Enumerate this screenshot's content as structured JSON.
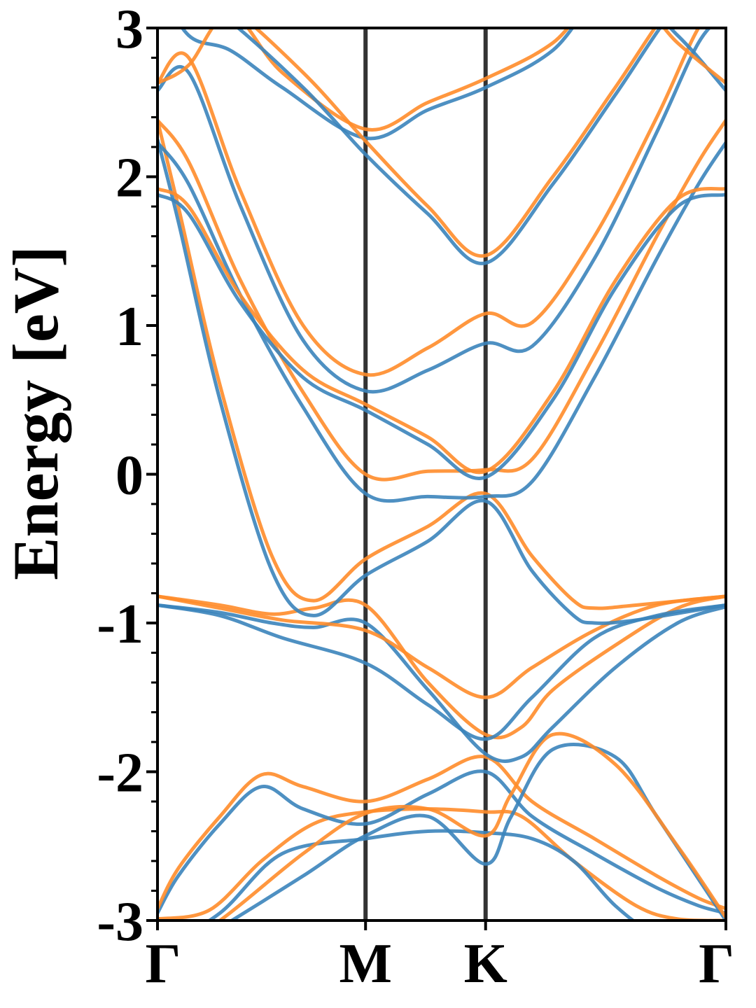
{
  "chart_data": {
    "type": "line",
    "title": "",
    "xlabel": "",
    "ylabel": "Energy [eV]",
    "ylim": [
      -3,
      3
    ],
    "xlim": [
      0,
      2.732
    ],
    "x_ticks": [
      {
        "pos": 0,
        "label": "Γ"
      },
      {
        "pos": 1.0,
        "label": "M"
      },
      {
        "pos": 1.577,
        "label": "K"
      },
      {
        "pos": 2.732,
        "label": "Γ"
      }
    ],
    "y_ticks": [
      {
        "value": 3,
        "label": "3"
      },
      {
        "value": 2,
        "label": "2"
      },
      {
        "value": 1,
        "label": "1"
      },
      {
        "value": 0,
        "label": "0"
      },
      {
        "value": -1,
        "label": "-1"
      },
      {
        "value": -2,
        "label": "-2"
      },
      {
        "value": -3,
        "label": "-3"
      }
    ],
    "vlines": [
      1.0,
      1.577
    ],
    "colors": {
      "spin_a": "#3b84bb",
      "spin_b": "#ff8c2a",
      "vline": "#333333"
    },
    "grid": false,
    "legend": "none",
    "series": [
      {
        "color": "spin_b",
        "x": [
          0,
          0.25,
          0.5,
          0.75,
          1.0,
          1.3,
          1.577,
          1.75,
          2.0,
          2.3,
          2.5,
          2.732
        ],
        "y": [
          -2.99,
          -2.93,
          -2.6,
          -2.35,
          -2.27,
          -2.25,
          -2.27,
          -2.3,
          -2.6,
          -2.9,
          -2.99,
          -3.0
        ]
      },
      {
        "color": "spin_a",
        "x": [
          0,
          0.1,
          0.3,
          0.5,
          0.7,
          1.0,
          1.3,
          1.577,
          1.8,
          2.1,
          2.4,
          2.6,
          2.732
        ],
        "y": [
          -2.95,
          -2.7,
          -2.35,
          -2.1,
          -2.25,
          -2.35,
          -2.15,
          -2.0,
          -2.3,
          -2.55,
          -2.78,
          -2.9,
          -2.95
        ]
      },
      {
        "color": "spin_b",
        "x": [
          0,
          0.1,
          0.3,
          0.5,
          0.7,
          1.0,
          1.3,
          1.577,
          1.8,
          2.1,
          2.4,
          2.6,
          2.732
        ],
        "y": [
          -2.92,
          -2.65,
          -2.3,
          -2.02,
          -2.1,
          -2.2,
          -2.05,
          -1.9,
          -2.2,
          -2.45,
          -2.7,
          -2.85,
          -2.92
        ]
      },
      {
        "color": "spin_a",
        "x": [
          0,
          0.3,
          0.6,
          1.0,
          1.3,
          1.577,
          1.8,
          2.0,
          2.2,
          2.4,
          2.732
        ],
        "y": [
          -3.2,
          -2.95,
          -2.55,
          -2.45,
          -2.4,
          -2.41,
          -2.45,
          -2.6,
          -2.9,
          -3.1,
          -3.3
        ]
      },
      {
        "color": "spin_a",
        "x": [
          0,
          0.3,
          0.7,
          1.0,
          1.3,
          1.577,
          1.7,
          1.9,
          2.2,
          2.4,
          2.732
        ],
        "y": [
          -3.3,
          -3.05,
          -2.7,
          -2.43,
          -2.3,
          -2.62,
          -2.3,
          -1.85,
          -1.9,
          -2.3,
          -3.0
        ]
      },
      {
        "color": "spin_b",
        "x": [
          0,
          0.3,
          0.7,
          1.0,
          1.3,
          1.577,
          1.7,
          1.9,
          2.2,
          2.5,
          2.732
        ],
        "y": [
          -3.25,
          -3.0,
          -2.55,
          -2.28,
          -2.25,
          -2.43,
          -2.15,
          -1.75,
          -1.95,
          -2.5,
          -2.98
        ]
      },
      {
        "color": "spin_b",
        "x": [
          0,
          0.3,
          0.55,
          0.75,
          1.0,
          1.3,
          1.577,
          1.75,
          1.9,
          2.2,
          2.5,
          2.732
        ],
        "y": [
          -0.82,
          -0.88,
          -0.94,
          -0.9,
          -0.88,
          -1.4,
          -1.75,
          -1.7,
          -1.45,
          -1.15,
          -0.9,
          -0.82
        ]
      },
      {
        "color": "spin_a",
        "x": [
          0,
          0.3,
          0.55,
          0.75,
          1.0,
          1.3,
          1.577,
          1.75,
          1.9,
          2.2,
          2.5,
          2.732
        ],
        "y": [
          -0.88,
          -0.93,
          -1.0,
          -1.03,
          -1.0,
          -1.45,
          -1.88,
          -1.9,
          -1.7,
          -1.3,
          -1.0,
          -0.89
        ]
      },
      {
        "color": "spin_b",
        "x": [
          0,
          0.3,
          0.6,
          1.0,
          1.3,
          1.577,
          1.8,
          2.1,
          2.4,
          2.732
        ],
        "y": [
          -0.82,
          -0.9,
          -0.98,
          -1.05,
          -1.3,
          -1.5,
          -1.3,
          -1.05,
          -0.88,
          -0.82
        ]
      },
      {
        "color": "spin_a",
        "x": [
          0,
          0.3,
          0.6,
          1.0,
          1.3,
          1.577,
          1.8,
          2.1,
          2.4,
          2.732
        ],
        "y": [
          -0.88,
          -0.95,
          -1.1,
          -1.27,
          -1.55,
          -1.78,
          -1.5,
          -1.1,
          -0.95,
          -0.88
        ]
      },
      {
        "color": "spin_b",
        "x": [
          0,
          0.1,
          0.3,
          0.55,
          0.75,
          1.0,
          1.3,
          1.577,
          1.8,
          2.0,
          2.1,
          2.3,
          2.732
        ],
        "y": [
          2.38,
          1.8,
          0.6,
          -0.55,
          -0.85,
          -0.57,
          -0.35,
          -0.13,
          -0.55,
          -0.85,
          -0.9,
          -0.88,
          -0.82
        ]
      },
      {
        "color": "spin_a",
        "x": [
          0,
          0.1,
          0.3,
          0.55,
          0.75,
          1.0,
          1.3,
          1.577,
          1.8,
          2.0,
          2.1,
          2.3,
          2.732
        ],
        "y": [
          2.25,
          1.7,
          0.5,
          -0.65,
          -0.95,
          -0.68,
          -0.45,
          -0.18,
          -0.65,
          -0.95,
          -1.0,
          -0.98,
          -0.88
        ]
      },
      {
        "color": "spin_b",
        "x": [
          0,
          0.15,
          0.4,
          0.7,
          1.0,
          1.3,
          1.577,
          1.8,
          2.1,
          2.4,
          2.6,
          2.732
        ],
        "y": [
          2.38,
          2.1,
          1.3,
          0.55,
          0.0,
          0.02,
          0.03,
          0.1,
          0.8,
          1.6,
          2.1,
          2.38
        ]
      },
      {
        "color": "spin_a",
        "x": [
          0,
          0.15,
          0.4,
          0.7,
          1.0,
          1.3,
          1.577,
          1.8,
          2.1,
          2.4,
          2.6,
          2.732
        ],
        "y": [
          2.23,
          1.95,
          1.2,
          0.45,
          -0.13,
          -0.15,
          -0.15,
          -0.05,
          0.65,
          1.45,
          1.95,
          2.23
        ]
      },
      {
        "color": "spin_b",
        "x": [
          0,
          0.15,
          0.4,
          0.7,
          1.0,
          1.3,
          1.577,
          1.9,
          2.2,
          2.5,
          2.732
        ],
        "y": [
          1.92,
          1.8,
          1.2,
          0.7,
          0.47,
          0.25,
          0.02,
          0.55,
          1.3,
          1.85,
          1.92
        ]
      },
      {
        "color": "spin_a",
        "x": [
          0,
          0.15,
          0.4,
          0.7,
          1.0,
          1.3,
          1.577,
          1.9,
          2.2,
          2.5,
          2.732
        ],
        "y": [
          1.88,
          1.75,
          1.15,
          0.65,
          0.43,
          0.2,
          -0.02,
          0.5,
          1.25,
          1.8,
          1.88
        ]
      },
      {
        "color": "spin_b",
        "x": [
          0,
          0.15,
          0.4,
          0.7,
          1.0,
          1.3,
          1.577,
          1.8,
          2.1,
          2.4,
          2.6,
          2.732
        ],
        "y": [
          2.63,
          2.8,
          1.9,
          1.0,
          0.67,
          0.85,
          1.08,
          1.02,
          1.6,
          2.4,
          3.0,
          3.2
        ]
      },
      {
        "color": "spin_a",
        "x": [
          0,
          0.15,
          0.4,
          0.7,
          1.0,
          1.3,
          1.577,
          1.8,
          2.1,
          2.4,
          2.6,
          2.732
        ],
        "y": [
          2.58,
          2.7,
          1.8,
          0.9,
          0.56,
          0.7,
          0.88,
          0.86,
          1.45,
          2.3,
          2.9,
          3.1
        ]
      },
      {
        "color": "spin_a",
        "x": [
          0,
          0.15,
          0.35,
          0.6,
          1.0,
          1.3,
          1.577,
          1.9,
          2.2,
          2.5,
          2.732
        ],
        "y": [
          3.3,
          2.95,
          2.85,
          2.6,
          2.26,
          2.45,
          2.6,
          2.85,
          3.3,
          2.95,
          2.58
        ]
      },
      {
        "color": "spin_b",
        "x": [
          0,
          0.15,
          0.35,
          0.6,
          1.0,
          1.3,
          1.577,
          1.9,
          2.2,
          2.5,
          2.732
        ],
        "y": [
          2.63,
          2.75,
          3.1,
          2.7,
          2.32,
          2.5,
          2.66,
          2.9,
          3.3,
          2.9,
          2.63
        ]
      },
      {
        "color": "spin_b",
        "x": [
          0,
          0.3,
          0.7,
          1.0,
          1.3,
          1.577,
          1.9,
          2.2,
          2.5,
          2.732
        ],
        "y": [
          3.4,
          3.2,
          2.7,
          2.24,
          1.8,
          1.47,
          2.0,
          2.6,
          3.2,
          3.4
        ]
      },
      {
        "color": "spin_a",
        "x": [
          0,
          0.3,
          0.7,
          1.0,
          1.3,
          1.577,
          1.9,
          2.2,
          2.5,
          2.732
        ],
        "y": [
          3.35,
          3.1,
          2.6,
          2.15,
          1.75,
          1.42,
          1.95,
          2.55,
          3.15,
          3.35
        ]
      }
    ]
  }
}
